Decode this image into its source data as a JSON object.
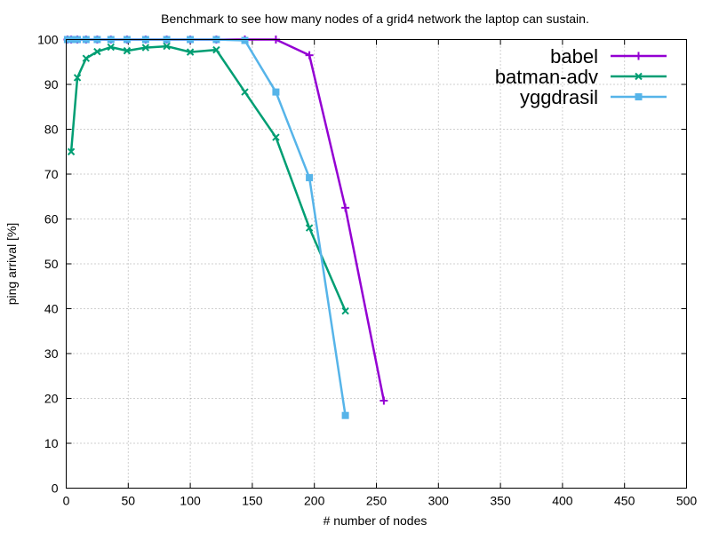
{
  "chart_data": {
    "type": "line",
    "title": "Benchmark to see how many nodes of a grid4 network the laptop can sustain.",
    "xlabel": "# number of nodes",
    "ylabel": "ping arrival [%]",
    "xlim": [
      0,
      500
    ],
    "ylim": [
      0,
      100
    ],
    "xticks": [
      0,
      50,
      100,
      150,
      200,
      250,
      300,
      350,
      400,
      450,
      500
    ],
    "yticks": [
      0,
      10,
      20,
      30,
      40,
      50,
      60,
      70,
      80,
      90,
      100
    ],
    "grid": true,
    "legend_position": "top-right",
    "series": [
      {
        "name": "babel",
        "color": "#9400d3",
        "marker": "plus",
        "x": [
          1,
          4,
          9,
          16,
          25,
          36,
          49,
          64,
          81,
          100,
          121,
          144,
          169,
          196,
          225,
          256
        ],
        "y": [
          100,
          100,
          100,
          100,
          100,
          100,
          100,
          100,
          100,
          100,
          100,
          100,
          100,
          96.5,
          62.5,
          19.5
        ]
      },
      {
        "name": "batman-adv",
        "color": "#009e73",
        "marker": "x",
        "x": [
          4,
          9,
          16,
          25,
          36,
          49,
          64,
          81,
          100,
          121,
          144,
          169,
          196,
          225
        ],
        "y": [
          75,
          91.5,
          95.8,
          97.3,
          98.3,
          97.5,
          98.2,
          98.5,
          97.2,
          97.7,
          88.3,
          78.2,
          58.0,
          39.5
        ]
      },
      {
        "name": "yggdrasil",
        "color": "#56b4e9",
        "marker": "square",
        "x": [
          1,
          4,
          9,
          16,
          25,
          36,
          49,
          64,
          81,
          100,
          121,
          144,
          169,
          196,
          225
        ],
        "y": [
          100,
          100,
          100,
          100,
          100,
          100,
          100,
          100,
          100,
          100,
          100,
          99.8,
          88.3,
          69.2,
          16.2
        ]
      }
    ]
  }
}
